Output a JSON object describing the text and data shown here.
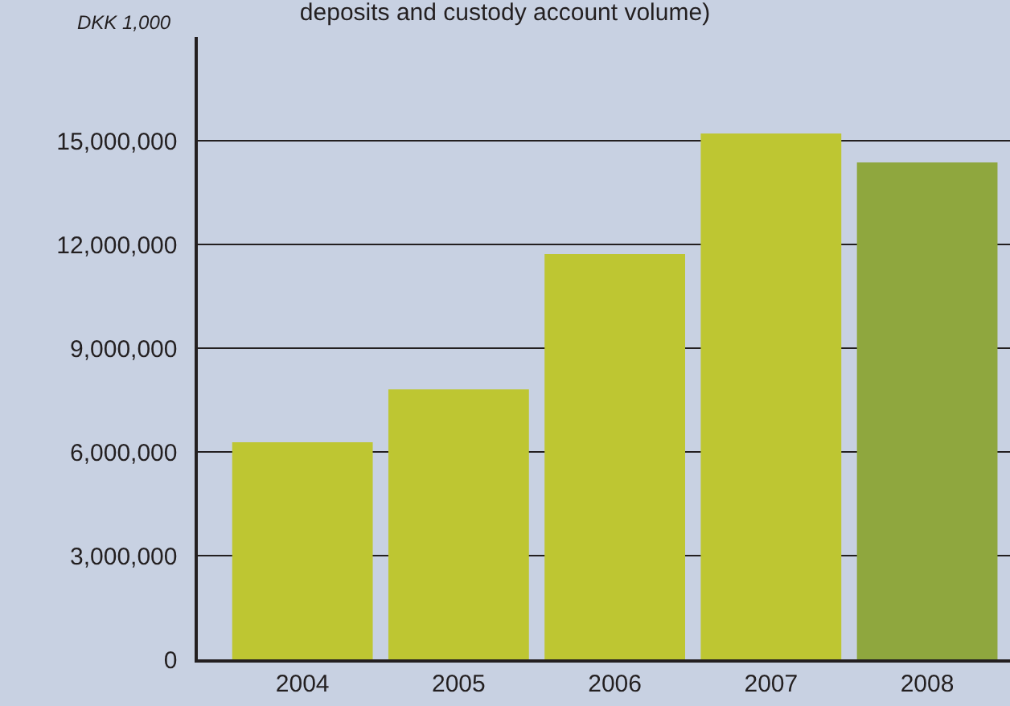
{
  "chart_data": {
    "type": "bar",
    "title": "deposits and custody account volume)",
    "ylabel": "DKK 1,000",
    "categories": [
      "2004",
      "2005",
      "2006",
      "2007",
      "2008"
    ],
    "values": [
      6280000,
      7810000,
      11720000,
      15210000,
      14370000
    ],
    "colors": [
      "#bec632",
      "#bec632",
      "#bec632",
      "#bec632",
      "#8fa73e"
    ],
    "ylim": [
      0,
      18000000
    ],
    "yticks": [
      {
        "value": 0,
        "label": "0"
      },
      {
        "value": 3000000,
        "label": "3,000,000"
      },
      {
        "value": 6000000,
        "label": "6,000,000"
      },
      {
        "value": 9000000,
        "label": "9,000,000"
      },
      {
        "value": 12000000,
        "label": "12,000,000"
      },
      {
        "value": 15000000,
        "label": "15,000,000"
      }
    ],
    "grid": "y"
  }
}
